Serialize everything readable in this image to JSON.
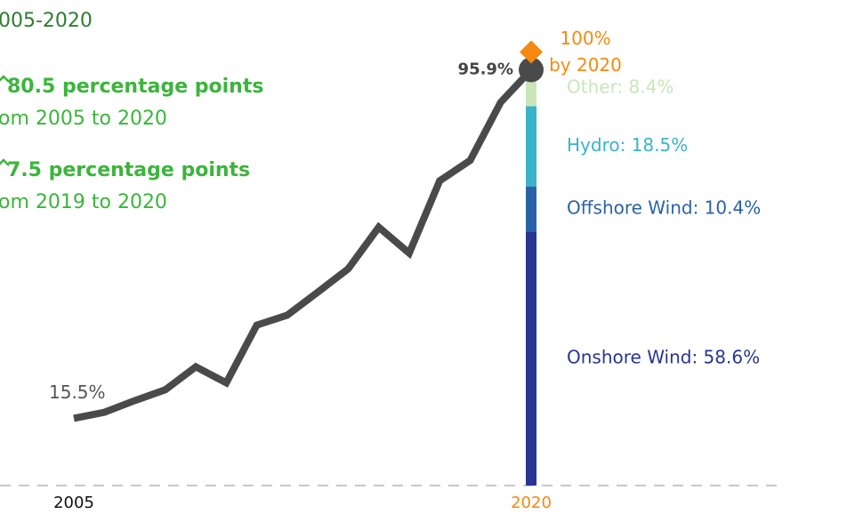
{
  "chart_data": {
    "type": "line",
    "subtitle": "005-2020",
    "annotations": [
      {
        "bold": "80.5 percentage points",
        "text": "om 2005 to 2020"
      },
      {
        "bold": "7.5 percentage points",
        "text": "om 2019 to 2020"
      }
    ],
    "x": [
      2005,
      2006,
      2007,
      2008,
      2009,
      2010,
      2011,
      2012,
      2013,
      2014,
      2015,
      2016,
      2017,
      2018,
      2019,
      2020
    ],
    "xlim": [
      2005,
      2020
    ],
    "xticks": [
      2005,
      2020
    ],
    "ylim": [
      0,
      112
    ],
    "series": [
      {
        "name": "Total",
        "color": "#4a4a4a",
        "values": [
          15.5,
          16.9,
          19.6,
          22.1,
          27.4,
          23.7,
          37.0,
          39.3,
          44.6,
          50.0,
          59.6,
          53.6,
          70.3,
          75.0,
          88.4,
          95.9
        ],
        "value_labels": [
          "15.5%",
          null,
          null,
          null,
          null,
          null,
          null,
          null,
          null,
          null,
          null,
          null,
          null,
          null,
          null,
          "95.9%"
        ]
      }
    ],
    "breakdown": [
      {
        "name": "Onshore Wind",
        "color": "#283593",
        "value": 58.6,
        "label": "Onshore Wind: 58.6%"
      },
      {
        "name": "Offshore Wind",
        "color": "#2a62aa",
        "value": 10.4,
        "label": "Offshore Wind: 10.4%"
      },
      {
        "name": "Hydro",
        "color": "#3bb3c8",
        "value": 18.5,
        "label": "Hydro: 18.5%"
      },
      {
        "name": "Other",
        "color": "#c8e6b8",
        "value": 8.4,
        "label": "Other: 8.4%"
      }
    ],
    "target": {
      "value": 100,
      "color": "#f5890f",
      "label": [
        "100%",
        "by 2020"
      ]
    }
  }
}
